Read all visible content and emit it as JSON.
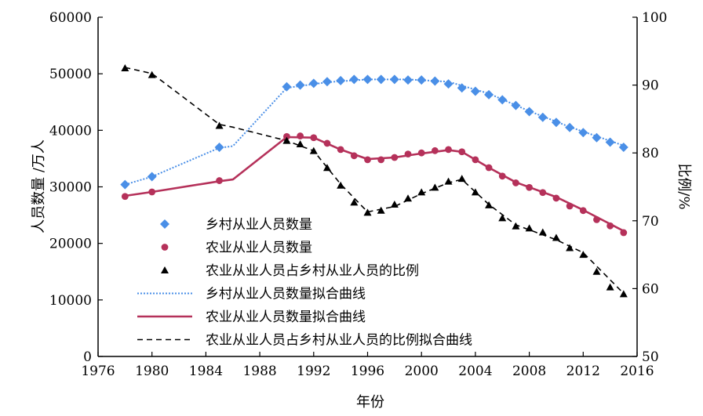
{
  "chart_data": {
    "type": "line",
    "xlabel": "年份",
    "ylabel": "人员数量 /万人",
    "y2label": "比例/%",
    "xlim": [
      1976,
      2016
    ],
    "ylim": [
      0,
      60000
    ],
    "y2lim": [
      50,
      100
    ],
    "x_ticks": [
      "1976",
      "1980",
      "1984",
      "1988",
      "1992",
      "1996",
      "2000",
      "2004",
      "2008",
      "2012",
      "2016"
    ],
    "y_ticks": [
      "0",
      "10000",
      "20000",
      "30000",
      "40000",
      "50000",
      "60000"
    ],
    "y2_ticks": [
      "50",
      "60",
      "70",
      "80",
      "90",
      "100"
    ],
    "grid": false,
    "legend_position": "lower-left",
    "colors": {
      "rural": "#4a8fe7",
      "agri": "#b5315a",
      "ratio": "#000000"
    },
    "series": [
      {
        "name": "乡村从业人员数量",
        "kind": "scatter",
        "marker": "diamond",
        "axis": "left",
        "x": [
          1978,
          1980,
          1985,
          1990,
          1991,
          1992,
          1993,
          1994,
          1995,
          1996,
          1997,
          1998,
          1999,
          2000,
          2001,
          2002,
          2003,
          2004,
          2005,
          2006,
          2007,
          2008,
          2009,
          2010,
          2011,
          2012,
          2013,
          2014,
          2015
        ],
        "values": [
          30400,
          31800,
          37000,
          47700,
          48000,
          48300,
          48600,
          48800,
          49000,
          49000,
          49000,
          49000,
          48900,
          48900,
          48700,
          48200,
          47500,
          46900,
          46300,
          45400,
          44400,
          43300,
          42300,
          41400,
          40500,
          39600,
          38700,
          37900,
          37000
        ]
      },
      {
        "name": "农业从业人员数量",
        "kind": "scatter",
        "marker": "circle",
        "axis": "left",
        "x": [
          1978,
          1980,
          1985,
          1990,
          1991,
          1992,
          1993,
          1994,
          1995,
          1996,
          1997,
          1998,
          1999,
          2000,
          2001,
          2002,
          2003,
          2004,
          2005,
          2006,
          2007,
          2008,
          2009,
          2010,
          2011,
          2012,
          2013,
          2014,
          2015
        ],
        "values": [
          28300,
          29100,
          31100,
          38900,
          39000,
          38700,
          37700,
          36600,
          35500,
          34800,
          34800,
          35200,
          35800,
          36000,
          36400,
          36600,
          36200,
          34800,
          33400,
          31900,
          30700,
          29900,
          29000,
          28000,
          26600,
          25800,
          24200,
          23100,
          21900
        ]
      },
      {
        "name": "农业从业人员占乡村从业人员的比例",
        "kind": "scatter",
        "marker": "triangle",
        "axis": "right",
        "x": [
          1978,
          1980,
          1985,
          1990,
          1991,
          1992,
          1993,
          1994,
          1995,
          1996,
          1997,
          1998,
          1999,
          2000,
          2001,
          2002,
          2003,
          2004,
          2005,
          2006,
          2007,
          2008,
          2009,
          2010,
          2011,
          2012,
          2013,
          2014,
          2015
        ],
        "values": [
          92.5,
          91.5,
          84.0,
          81.8,
          81.3,
          80.3,
          77.8,
          75.2,
          72.7,
          71.2,
          71.5,
          72.4,
          73.3,
          74.2,
          74.9,
          75.8,
          76.2,
          74.2,
          72.3,
          70.4,
          69.2,
          68.9,
          68.3,
          67.5,
          66.0,
          65.0,
          62.5,
          60.2,
          59.2
        ]
      },
      {
        "name": "乡村从业人员数量拟合曲线",
        "kind": "line",
        "style": "dotted",
        "axis": "left",
        "x": [
          1978,
          1980,
          1985,
          1986,
          1990,
          1993,
          1996,
          1999,
          2002,
          2005,
          2008,
          2011,
          2015
        ],
        "values": [
          30400,
          31800,
          36900,
          37200,
          47500,
          48500,
          49000,
          49000,
          48600,
          46500,
          43400,
          40600,
          37300
        ]
      },
      {
        "name": "农业从业人员数量拟合曲线",
        "kind": "line",
        "style": "solid",
        "axis": "left",
        "x": [
          1978,
          1980,
          1985,
          1986,
          1990,
          1992,
          1994,
          1996,
          1998,
          2000,
          2002,
          2003,
          2005,
          2007,
          2010,
          2012,
          2015
        ],
        "values": [
          28400,
          29100,
          31000,
          31300,
          38800,
          38700,
          36600,
          34900,
          35200,
          35900,
          36500,
          36200,
          33400,
          30800,
          28200,
          25900,
          22200
        ]
      },
      {
        "name": "农业从业人员占乡村从业人员的比例拟合曲线",
        "kind": "line",
        "style": "dashed",
        "axis": "right",
        "x": [
          1978,
          1980,
          1985,
          1986,
          1990,
          1992,
          1994,
          1996,
          1998,
          2000,
          2002,
          2003,
          2005,
          2007,
          2010,
          2012,
          2015
        ],
        "values": [
          92.6,
          91.7,
          84.2,
          83.8,
          81.8,
          80.3,
          75.4,
          71.3,
          72.1,
          74.0,
          75.6,
          76.1,
          72.4,
          69.4,
          67.2,
          65.3,
          59.3
        ]
      }
    ]
  }
}
